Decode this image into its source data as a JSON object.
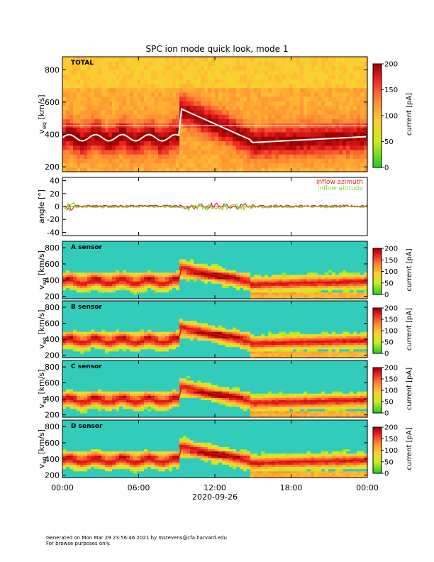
{
  "chart_data": [
    {
      "type": "heatmap",
      "title": "SPC ion mode quick look, mode 1",
      "panel_label": "TOTAL",
      "ylabel": "v",
      "ylabel_sub": "eq",
      "yunits": "[km/s]",
      "ylim": [
        170,
        880
      ],
      "yticks": [
        200,
        400,
        600,
        800
      ],
      "colorbar": {
        "label": "current [pA]",
        "range": [
          0,
          200
        ],
        "ticks": [
          0,
          50,
          100,
          150,
          200
        ]
      }
    },
    {
      "type": "line",
      "ylabel": "angle [°]",
      "ylim": [
        -45,
        45
      ],
      "yticks": [
        -40,
        -20,
        0,
        20,
        40
      ],
      "series": [
        {
          "name": "inflow azimuth",
          "color": "#ee2222"
        },
        {
          "name": "inflow altitude",
          "color": "#88dd33"
        }
      ]
    },
    {
      "type": "heatmap",
      "panel_label": "A sensor",
      "ylabel": "v",
      "ylabel_sub": "eq",
      "yunits": "[km/s]",
      "ylim": [
        170,
        880
      ],
      "yticks": [
        200,
        400,
        600,
        800
      ],
      "colorbar": {
        "label": "current [pA]",
        "range": [
          0,
          200
        ],
        "ticks": [
          0,
          50,
          100,
          150,
          200
        ]
      }
    },
    {
      "type": "heatmap",
      "panel_label": "B sensor",
      "ylabel": "v",
      "ylabel_sub": "eq",
      "yunits": "[km/s]",
      "ylim": [
        170,
        880
      ],
      "yticks": [
        200,
        400,
        600,
        800
      ],
      "colorbar": {
        "label": "current [pA]",
        "range": [
          0,
          200
        ],
        "ticks": [
          0,
          50,
          100,
          150,
          200
        ]
      }
    },
    {
      "type": "heatmap",
      "panel_label": "C sensor",
      "ylabel": "v",
      "ylabel_sub": "eq",
      "yunits": "[km/s]",
      "ylim": [
        170,
        880
      ],
      "yticks": [
        200,
        400,
        600,
        800
      ],
      "colorbar": {
        "label": "current [pA]",
        "range": [
          0,
          200
        ],
        "ticks": [
          0,
          50,
          100,
          150,
          200
        ]
      }
    },
    {
      "type": "heatmap",
      "panel_label": "D sensor",
      "ylabel": "v",
      "ylabel_sub": "eq",
      "yunits": "[km/s]",
      "ylim": [
        170,
        880
      ],
      "yticks": [
        200,
        400,
        600,
        800
      ],
      "colorbar": {
        "label": "current [pA]",
        "range": [
          0,
          200
        ],
        "ticks": [
          0,
          50,
          100,
          150,
          200
        ]
      }
    }
  ],
  "x_axis": {
    "tick_labels": [
      "00:00",
      "06:00",
      "12:00",
      "18:00",
      "00:00"
    ],
    "date_label": "2020-09-26"
  },
  "footer": {
    "line1": "Generated on Mon Mar 29 23:56:46 2021 by mstevens@cfa.harvard.edu",
    "line2": "For browse purposes only."
  }
}
